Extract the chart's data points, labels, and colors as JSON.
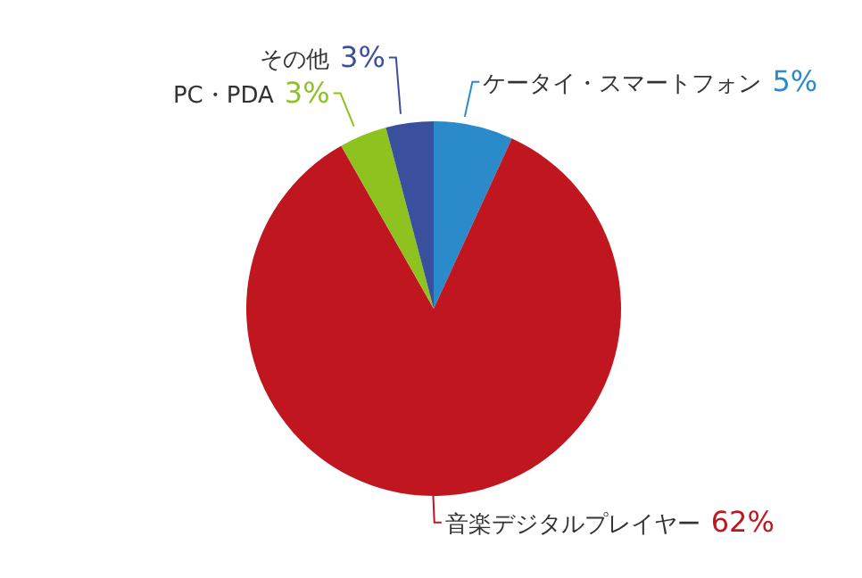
{
  "chart_data": {
    "type": "pie",
    "categories": [
      "ケータイ・スマートフォン",
      "音楽デジタルプレイヤー",
      "PC・PDA",
      "その他"
    ],
    "values": [
      5,
      62,
      3,
      3
    ],
    "value_labels": [
      "5%",
      "62%",
      "3%",
      "3%"
    ],
    "colors": [
      "#2b8ac9",
      "#c0161f",
      "#8dc21f",
      "#3a4f9e"
    ]
  }
}
